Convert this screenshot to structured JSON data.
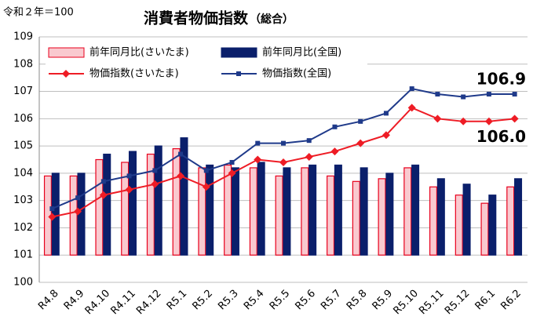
{
  "chart_data": {
    "type": "bar_line",
    "note": "令和２年＝100",
    "title": "消費者物価指数",
    "subtitle": "（総合）",
    "categories": [
      "R4.8",
      "R4.9",
      "R4.10",
      "R4.11",
      "R4.12",
      "R5.1",
      "R5.2",
      "R5.3",
      "R5.4",
      "R5.5",
      "R5.6",
      "R5.7",
      "R5.8",
      "R5.9",
      "R5.10",
      "R5.11",
      "R5.12",
      "R6.1",
      "R6.2"
    ],
    "ylim": [
      100,
      109
    ],
    "yticks": [
      100,
      101,
      102,
      103,
      104,
      105,
      106,
      107,
      108,
      109
    ],
    "grid": true,
    "bar_base": 101,
    "legend": "top",
    "series": [
      {
        "name": "前年同月比(さいたま)",
        "kind": "bar",
        "color": "#f9c9cf",
        "edge": "#e8001c",
        "values": [
          103.9,
          103.9,
          104.5,
          104.4,
          104.7,
          104.9,
          104.2,
          104.3,
          104.2,
          103.9,
          104.2,
          103.9,
          103.7,
          103.8,
          104.2,
          103.5,
          103.2,
          102.9,
          103.5
        ]
      },
      {
        "name": "前年同月比(全国)",
        "kind": "bar",
        "color": "#0a1f6b",
        "values": [
          104.0,
          104.0,
          104.7,
          104.8,
          105.0,
          105.3,
          104.3,
          104.2,
          104.4,
          104.2,
          104.3,
          104.3,
          104.2,
          104.0,
          104.3,
          103.8,
          103.6,
          103.2,
          103.8
        ]
      },
      {
        "name": "物価指数(さいたま)",
        "kind": "line",
        "color": "#ee1c25",
        "values": [
          102.4,
          102.6,
          103.2,
          103.4,
          103.6,
          103.9,
          103.5,
          104.0,
          104.5,
          104.4,
          104.6,
          104.8,
          105.1,
          105.4,
          106.4,
          106.0,
          105.9,
          105.9,
          106.0
        ],
        "value_labels": [
          null,
          null,
          null,
          null,
          null,
          null,
          null,
          null,
          null,
          null,
          null,
          null,
          null,
          null,
          null,
          null,
          null,
          null,
          "106.0"
        ]
      },
      {
        "name": "物価指数(全国)",
        "kind": "line",
        "color": "#1f3a8a",
        "values": [
          102.7,
          103.1,
          103.7,
          103.9,
          104.1,
          104.7,
          104.1,
          104.4,
          105.1,
          105.1,
          105.2,
          105.7,
          105.9,
          106.2,
          107.1,
          106.9,
          106.8,
          106.9,
          106.9
        ],
        "value_labels": [
          null,
          null,
          null,
          null,
          null,
          null,
          null,
          null,
          null,
          null,
          null,
          null,
          null,
          null,
          null,
          null,
          null,
          null,
          "106.9"
        ]
      }
    ]
  }
}
